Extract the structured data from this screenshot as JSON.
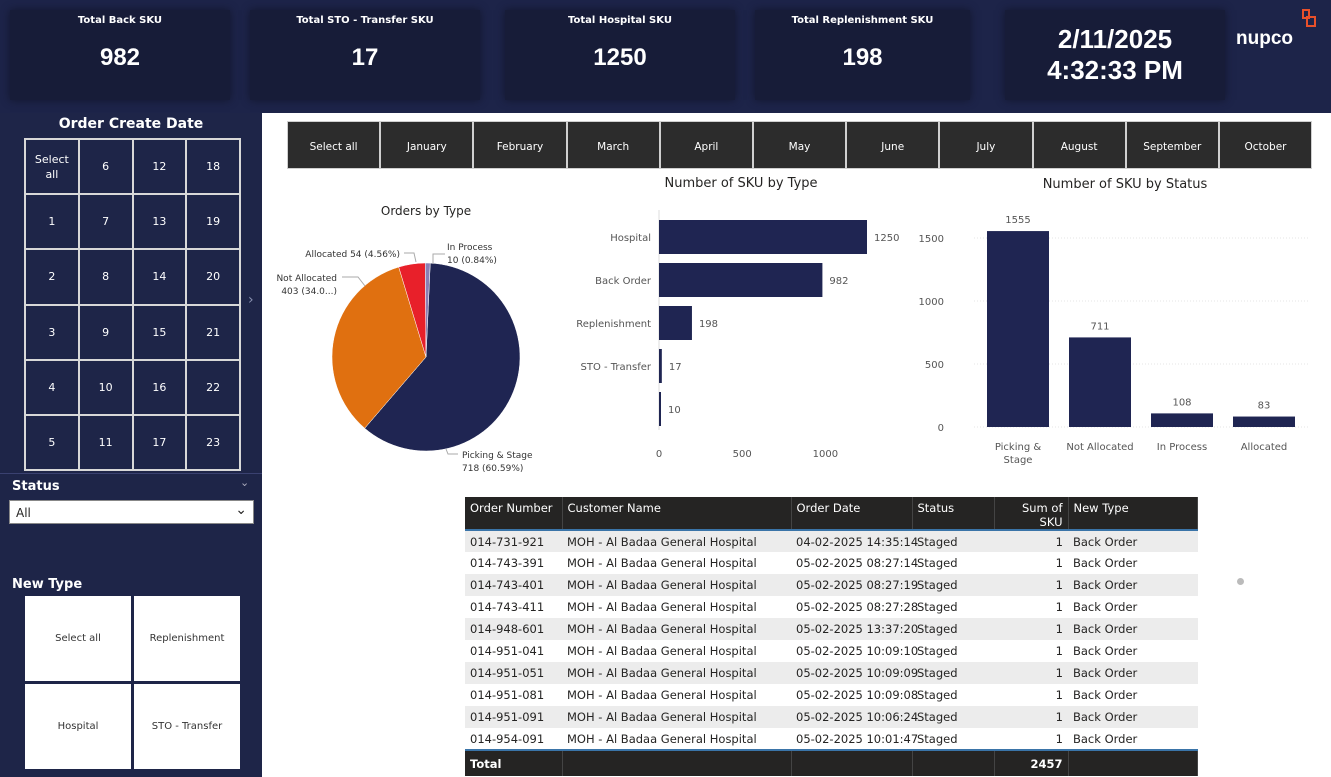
{
  "kpis": [
    {
      "title": "Total Back SKU",
      "value": "982"
    },
    {
      "title": "Total STO - Transfer SKU",
      "value": "17"
    },
    {
      "title": "Total Hospital SKU",
      "value": "1250"
    },
    {
      "title": "Total Replenishment SKU",
      "value": "198"
    }
  ],
  "datetime": {
    "date": "2/11/2025",
    "time": "4:32:33 PM"
  },
  "logo": "nupco",
  "date_slicer": {
    "title": "Order Create Date",
    "items": [
      "Select all",
      "6",
      "12",
      "18",
      "1",
      "7",
      "13",
      "19",
      "2",
      "8",
      "14",
      "20",
      "3",
      "9",
      "15",
      "21",
      "4",
      "10",
      "16",
      "22",
      "5",
      "11",
      "17",
      "23"
    ]
  },
  "status_slicer": {
    "title": "Status",
    "value": "All"
  },
  "newtype_slicer": {
    "title": "New Type",
    "items": [
      "Select all",
      "Replenishment",
      "Hospital",
      "STO - Transfer"
    ]
  },
  "months": [
    "Select all",
    "January",
    "February",
    "March",
    "April",
    "May",
    "June",
    "July",
    "August",
    "September",
    "October"
  ],
  "colors": {
    "navy": "#1f2552",
    "orange": "#e07010",
    "red": "#e8202a",
    "purple": "#8a7fb5"
  },
  "chart_data": [
    {
      "type": "pie",
      "title": "Orders by Type",
      "slices": [
        {
          "name": "Picking & Stage",
          "value": 718,
          "label": "718 (60.59%)",
          "color": "#1f2552"
        },
        {
          "name": "Not Allocated",
          "value": 403,
          "label": "403 (34.0...)",
          "color": "#e07010"
        },
        {
          "name": "Allocated",
          "value": 54,
          "label": "Allocated 54 (4.56%)",
          "color": "#e8202a"
        },
        {
          "name": "In Process",
          "value": 10,
          "label": "10 (0.84%)",
          "color": "#8a7fb5"
        }
      ]
    },
    {
      "type": "bar",
      "title": "Number of SKU by Type",
      "categories": [
        "Hospital",
        "Back Order",
        "Replenishment",
        "STO - Transfer",
        ""
      ],
      "values": [
        1250,
        982,
        198,
        17,
        10
      ],
      "xticks": [
        0,
        500,
        1000
      ],
      "xlim": [
        0,
        1250
      ]
    },
    {
      "type": "bar",
      "title": "Number of SKU by Status",
      "categories": [
        "Picking & Stage",
        "Not Allocated",
        "In Process",
        "Allocated"
      ],
      "values": [
        1555,
        711,
        108,
        83
      ],
      "yticks": [
        0,
        500,
        1000,
        1500
      ],
      "ylim": [
        0,
        1555
      ]
    }
  ],
  "table": {
    "headers": [
      "Order Number",
      "Customer Name",
      "Order Date",
      "Status",
      "Sum of SKU",
      "New Type"
    ],
    "rows": [
      [
        "014-731-921",
        "MOH - Al Badaa General Hospital",
        "04-02-2025 14:35:14",
        "Staged",
        "1",
        "Back Order"
      ],
      [
        "014-743-391",
        "MOH - Al Badaa General Hospital",
        "05-02-2025 08:27:14",
        "Staged",
        "1",
        "Back Order"
      ],
      [
        "014-743-401",
        "MOH - Al Badaa General Hospital",
        "05-02-2025 08:27:19",
        "Staged",
        "1",
        "Back Order"
      ],
      [
        "014-743-411",
        "MOH - Al Badaa General Hospital",
        "05-02-2025 08:27:28",
        "Staged",
        "1",
        "Back Order"
      ],
      [
        "014-948-601",
        "MOH - Al Badaa General Hospital",
        "05-02-2025 13:37:20",
        "Staged",
        "1",
        "Back Order"
      ],
      [
        "014-951-041",
        "MOH - Al Badaa General Hospital",
        "05-02-2025 10:09:10",
        "Staged",
        "1",
        "Back Order"
      ],
      [
        "014-951-051",
        "MOH - Al Badaa General Hospital",
        "05-02-2025 10:09:09",
        "Staged",
        "1",
        "Back Order"
      ],
      [
        "014-951-081",
        "MOH - Al Badaa General Hospital",
        "05-02-2025 10:09:08",
        "Staged",
        "1",
        "Back Order"
      ],
      [
        "014-951-091",
        "MOH - Al Badaa General Hospital",
        "05-02-2025 10:06:24",
        "Staged",
        "1",
        "Back Order"
      ],
      [
        "014-954-091",
        "MOH - Al Badaa General Hospital",
        "05-02-2025 10:01:47",
        "Staged",
        "1",
        "Back Order"
      ]
    ],
    "total_label": "Total",
    "total_value": "2457"
  }
}
